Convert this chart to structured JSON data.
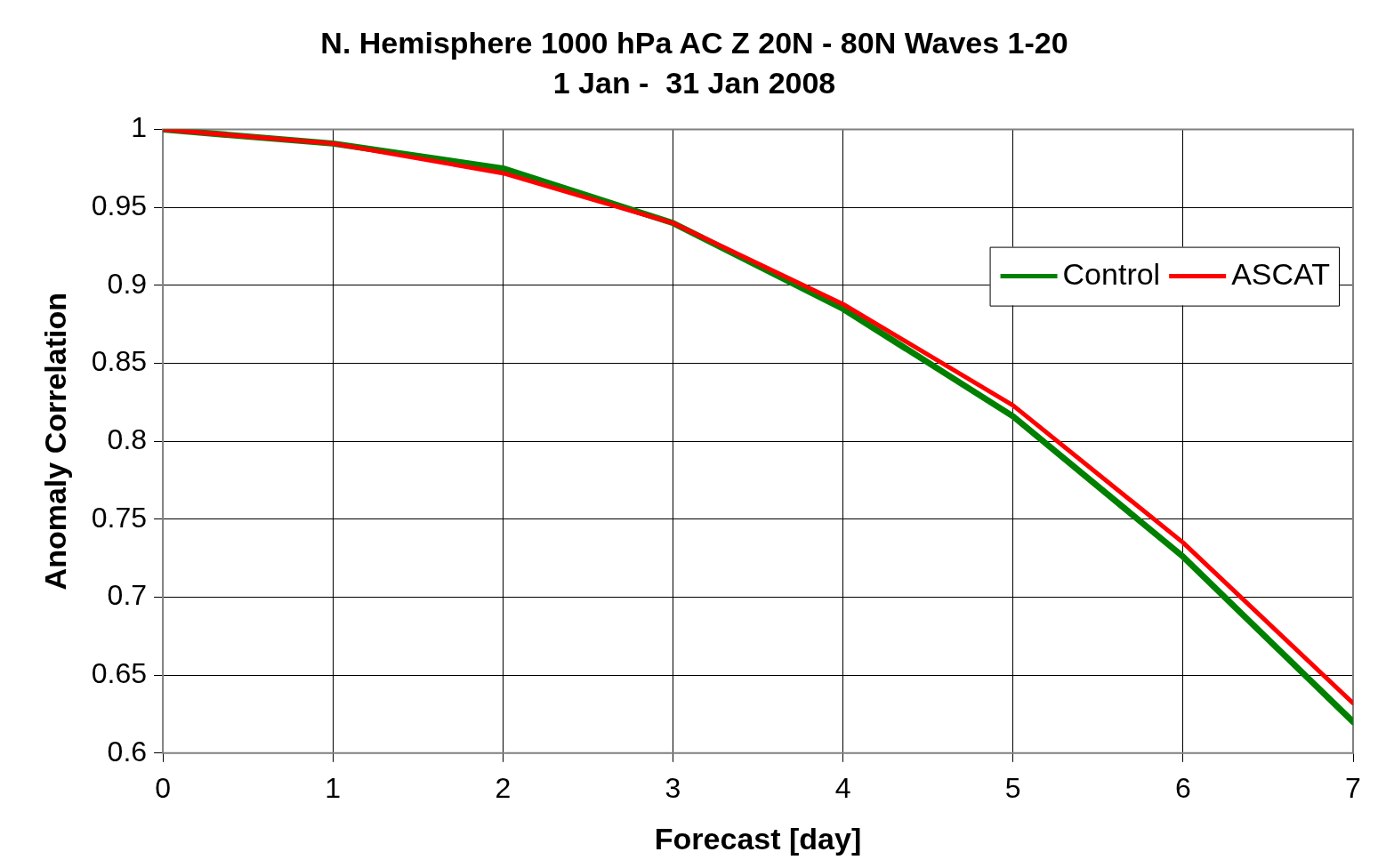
{
  "chart_data": {
    "type": "line",
    "title": "N. Hemisphere 1000 hPa AC Z 20N - 80N Waves 1-20",
    "subtitle": "1 Jan -  31 Jan 2008",
    "xlabel": "Forecast [day]",
    "ylabel": "Anomaly Correlation",
    "x": [
      0,
      1,
      2,
      3,
      4,
      5,
      6,
      7
    ],
    "series": [
      {
        "name": "Control",
        "color": "#008000",
        "values": [
          1.0,
          0.991,
          0.975,
          0.94,
          0.885,
          0.816,
          0.726,
          0.62
        ]
      },
      {
        "name": "ASCAT",
        "color": "#ff0000",
        "values": [
          1.0,
          0.991,
          0.972,
          0.94,
          0.888,
          0.823,
          0.735,
          0.632
        ]
      }
    ],
    "xlim": [
      0,
      7
    ],
    "xticks": [
      0,
      1,
      2,
      3,
      4,
      5,
      6,
      7
    ],
    "ylim": [
      0.6,
      1
    ],
    "yticks": [
      0.6,
      0.65,
      0.7,
      0.75,
      0.8,
      0.85,
      0.9,
      0.95,
      1
    ],
    "grid": true,
    "legend": "right",
    "marker": "none",
    "line_style": "solid"
  }
}
